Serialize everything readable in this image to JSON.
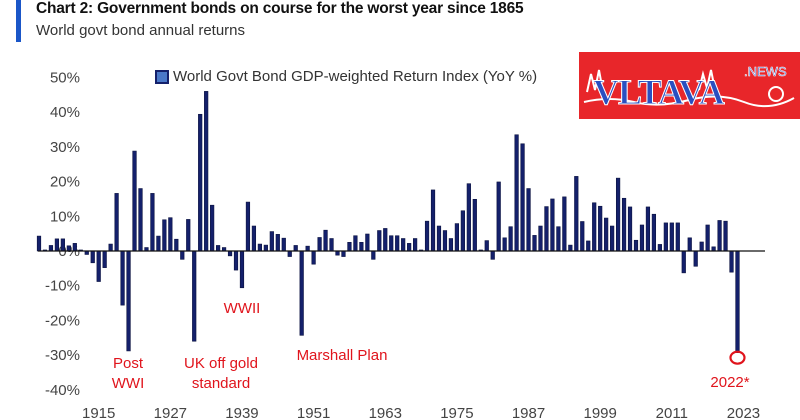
{
  "header": {
    "title": "Chart 2: Government bonds on course for the worst year  since 1865",
    "subtitle": "World govt bond annual returns"
  },
  "logo": {
    "text": "VLTAVA",
    "suffix": ".NEWS"
  },
  "colors": {
    "bar": "#14206b",
    "accent": "#1a56c8",
    "annotation": "#e0141c",
    "logo_bg": "#e8262a",
    "logo_text": "#2a4fc0"
  },
  "chart_data": {
    "type": "bar",
    "title": "Chart 2: Government bonds on course for the worst year  since 1865",
    "subtitle": "World govt bond annual returns",
    "legend": {
      "label": "World Govt Bond GDP-weighted Return Index (YoY %)",
      "placement": "top"
    },
    "xlabel": "",
    "ylabel": "",
    "start_year": 1905,
    "values": [
      4.3,
      0.3,
      1.6,
      3.5,
      3.5,
      1.5,
      2.2,
      0.3,
      -1,
      -3.4,
      -8.8,
      -4.8,
      2,
      16.6,
      -15.6,
      -28.8,
      28.8,
      18,
      1,
      16.6,
      4.3,
      9,
      9.6,
      3.4,
      -2.4,
      9.1,
      -26,
      39.4,
      46,
      13.2,
      1.6,
      1,
      -1.4,
      -5.5,
      -10.6,
      14.1,
      7.2,
      2,
      1.7,
      5.6,
      4.8,
      3.7,
      -1.6,
      1.6,
      -24.3,
      1.4,
      -3.8,
      3.9,
      6,
      3.6,
      -1.2,
      -1.6,
      2.5,
      4.4,
      2.5,
      4.9,
      -2.4,
      5.9,
      6.5,
      4.4,
      4.4,
      3.6,
      2.2,
      3.6,
      0.3,
      8.6,
      17.6,
      7.2,
      5.9,
      3.6,
      7.9,
      11.6,
      19.4,
      14.9,
      0.3,
      3,
      -2.4,
      19.9,
      3.8,
      7,
      33.5,
      30.9,
      18,
      4.5,
      7.2,
      12.8,
      15,
      7,
      15.6,
      1.7,
      21.5,
      8.5,
      2.9,
      13.9,
      12.9,
      9.5,
      7.2,
      21,
      15.2,
      12.7,
      3.1,
      7.5,
      12.7,
      10.6,
      1.9,
      8.1,
      8.1,
      8.1,
      -6.3,
      3.8,
      -4.4,
      2.6,
      7.5,
      1.2,
      8.8,
      8.6,
      -6.1,
      -29.3
    ],
    "ylim": [
      -40,
      50
    ],
    "yticks": [
      "50%",
      "40%",
      "30%",
      "20%",
      "10%",
      "0%",
      "-10%",
      "-20%",
      "-30%",
      "-40%"
    ],
    "ytick_values": [
      50,
      40,
      30,
      20,
      10,
      0,
      -10,
      -20,
      -30,
      -40
    ],
    "xticks": [
      "1915",
      "1927",
      "1939",
      "1951",
      "1963",
      "1975",
      "1987",
      "1999",
      "2011",
      "2023"
    ],
    "annotations": [
      {
        "lines": [
          "Post",
          "WWI"
        ],
        "year": 1920
      },
      {
        "lines": [
          "UK off gold",
          "standard"
        ],
        "year": 1931
      },
      {
        "lines": [
          "WWII"
        ],
        "year": 1939
      },
      {
        "lines": [
          "Marshall Plan"
        ],
        "year": 1949
      },
      {
        "lines": [
          "2022*"
        ],
        "year": 2022
      }
    ],
    "highlight_year": 2022
  }
}
